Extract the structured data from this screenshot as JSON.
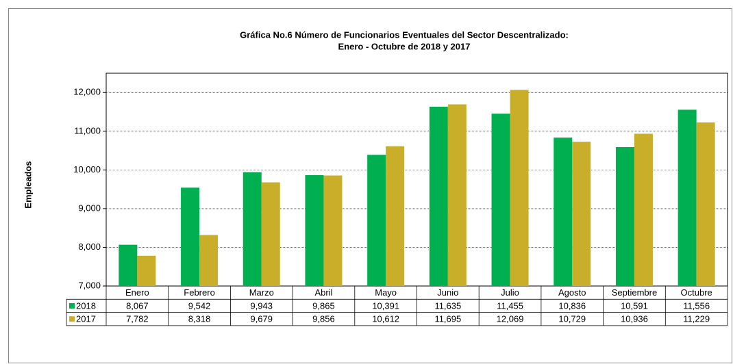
{
  "chart_data": {
    "type": "bar",
    "title": [
      "Gráfica No.6 Número de Funcionarios Eventuales del Sector Descentralizado:",
      "Enero - Octubre de 2018 y 2017"
    ],
    "y_label": "Empleados",
    "categories": [
      "Enero",
      "Febrero",
      "Marzo",
      "Abril",
      "Mayo",
      "Junio",
      "Julio",
      "Agosto",
      "Septiembre",
      "Octubre"
    ],
    "series": [
      {
        "name": "2018",
        "color": "#00b050",
        "values": [
          8067,
          9542,
          9943,
          9865,
          10391,
          11635,
          11455,
          10836,
          10591,
          11556
        ],
        "value_labels": [
          "8,067",
          "9,542",
          "9,943",
          "9,865",
          "10,391",
          "11,635",
          "11,455",
          "10,836",
          "10,591",
          "11,556"
        ]
      },
      {
        "name": "2017",
        "color": "#c9ae2a",
        "values": [
          7782,
          8318,
          9679,
          9856,
          10612,
          11695,
          12069,
          10729,
          10936,
          11229
        ],
        "value_labels": [
          "7,782",
          "8,318",
          "9,679",
          "9,856",
          "10,612",
          "11,695",
          "12,069",
          "10,729",
          "10,936",
          "11,229"
        ]
      }
    ],
    "ylim": [
      7000,
      12500
    ],
    "yticks": [
      {
        "value": 7000,
        "label": "7,000"
      },
      {
        "value": 8000,
        "label": "8,000"
      },
      {
        "value": 9000,
        "label": "9,000"
      },
      {
        "value": 10000,
        "label": "10,000"
      },
      {
        "value": 11000,
        "label": "11,000"
      },
      {
        "value": 12000,
        "label": "12,000"
      }
    ],
    "grid": true
  }
}
